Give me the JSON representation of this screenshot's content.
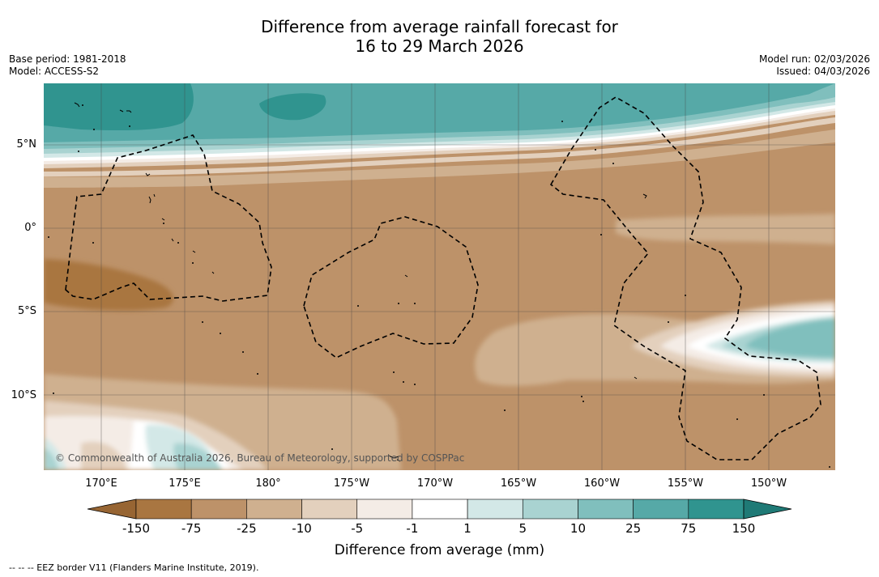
{
  "title_line1": "Difference from average rainfall forecast for",
  "title_line2": "16 to 29 March 2026",
  "base_period": "Base period: 1981-2018",
  "model": "Model: ACCESS-S2",
  "model_run": "Model run: 02/03/2026",
  "issued": "Issued: 04/03/2026",
  "map": {
    "lat_labels": [
      "5°N",
      "0°",
      "5°S",
      "10°S"
    ],
    "lon_labels": [
      "170°E",
      "175°E",
      "180°",
      "175°W",
      "170°W",
      "165°W",
      "160°W",
      "155°W",
      "150°W"
    ],
    "copyright": "© Commonwealth of Australia 2026, Bureau of Meteorology, supported by COSPPac"
  },
  "colorbar": {
    "labels": [
      "-150",
      "-75",
      "-25",
      "-10",
      "-5",
      "-1",
      "1",
      "5",
      "10",
      "25",
      "75",
      "150"
    ],
    "colors": [
      "#a97641",
      "#bd9269",
      "#cfb08f",
      "#e3d0bd",
      "#f4ece6",
      "#ffffff",
      "#d3e8e7",
      "#a9d3d1",
      "#80bfbd",
      "#56a9a7",
      "#30948f"
    ],
    "under_color": "#976533",
    "over_color": "#1f7a76",
    "title": "Difference from average (mm)"
  },
  "footer_legend": "--  --  -- EEZ border V11 (Flanders Marine Institute, 2019)."
}
